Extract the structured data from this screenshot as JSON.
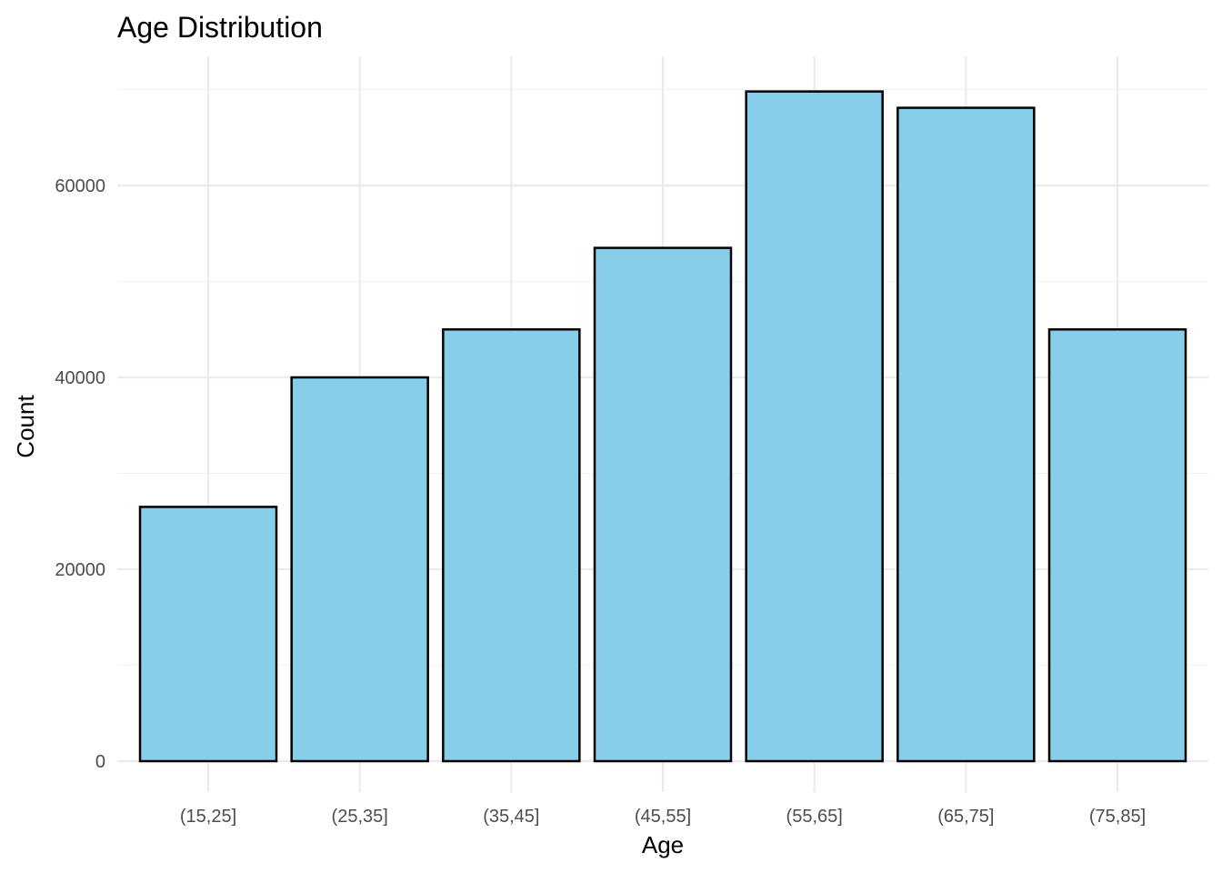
{
  "chart_data": {
    "type": "bar",
    "title": "Age Distribution",
    "xlabel": "Age",
    "ylabel": "Count",
    "categories": [
      "(15,25]",
      "(25,35]",
      "(35,45]",
      "(45,55]",
      "(55,65]",
      "(65,75]",
      "(75,85]"
    ],
    "values": [
      26500,
      40000,
      45000,
      53500,
      69800,
      68100,
      45000
    ],
    "ylim": [
      0,
      70000
    ],
    "yticks": [
      0,
      20000,
      40000,
      60000
    ],
    "grid": true,
    "legend": "none",
    "colors": {
      "bar_fill": "#87CEEB",
      "bar_outline": "#000000",
      "grid_major": "#EBEBEB",
      "grid_minor": "#F3F3F3",
      "tick_text": "#4D4D4D",
      "title_text": "#000000"
    }
  }
}
